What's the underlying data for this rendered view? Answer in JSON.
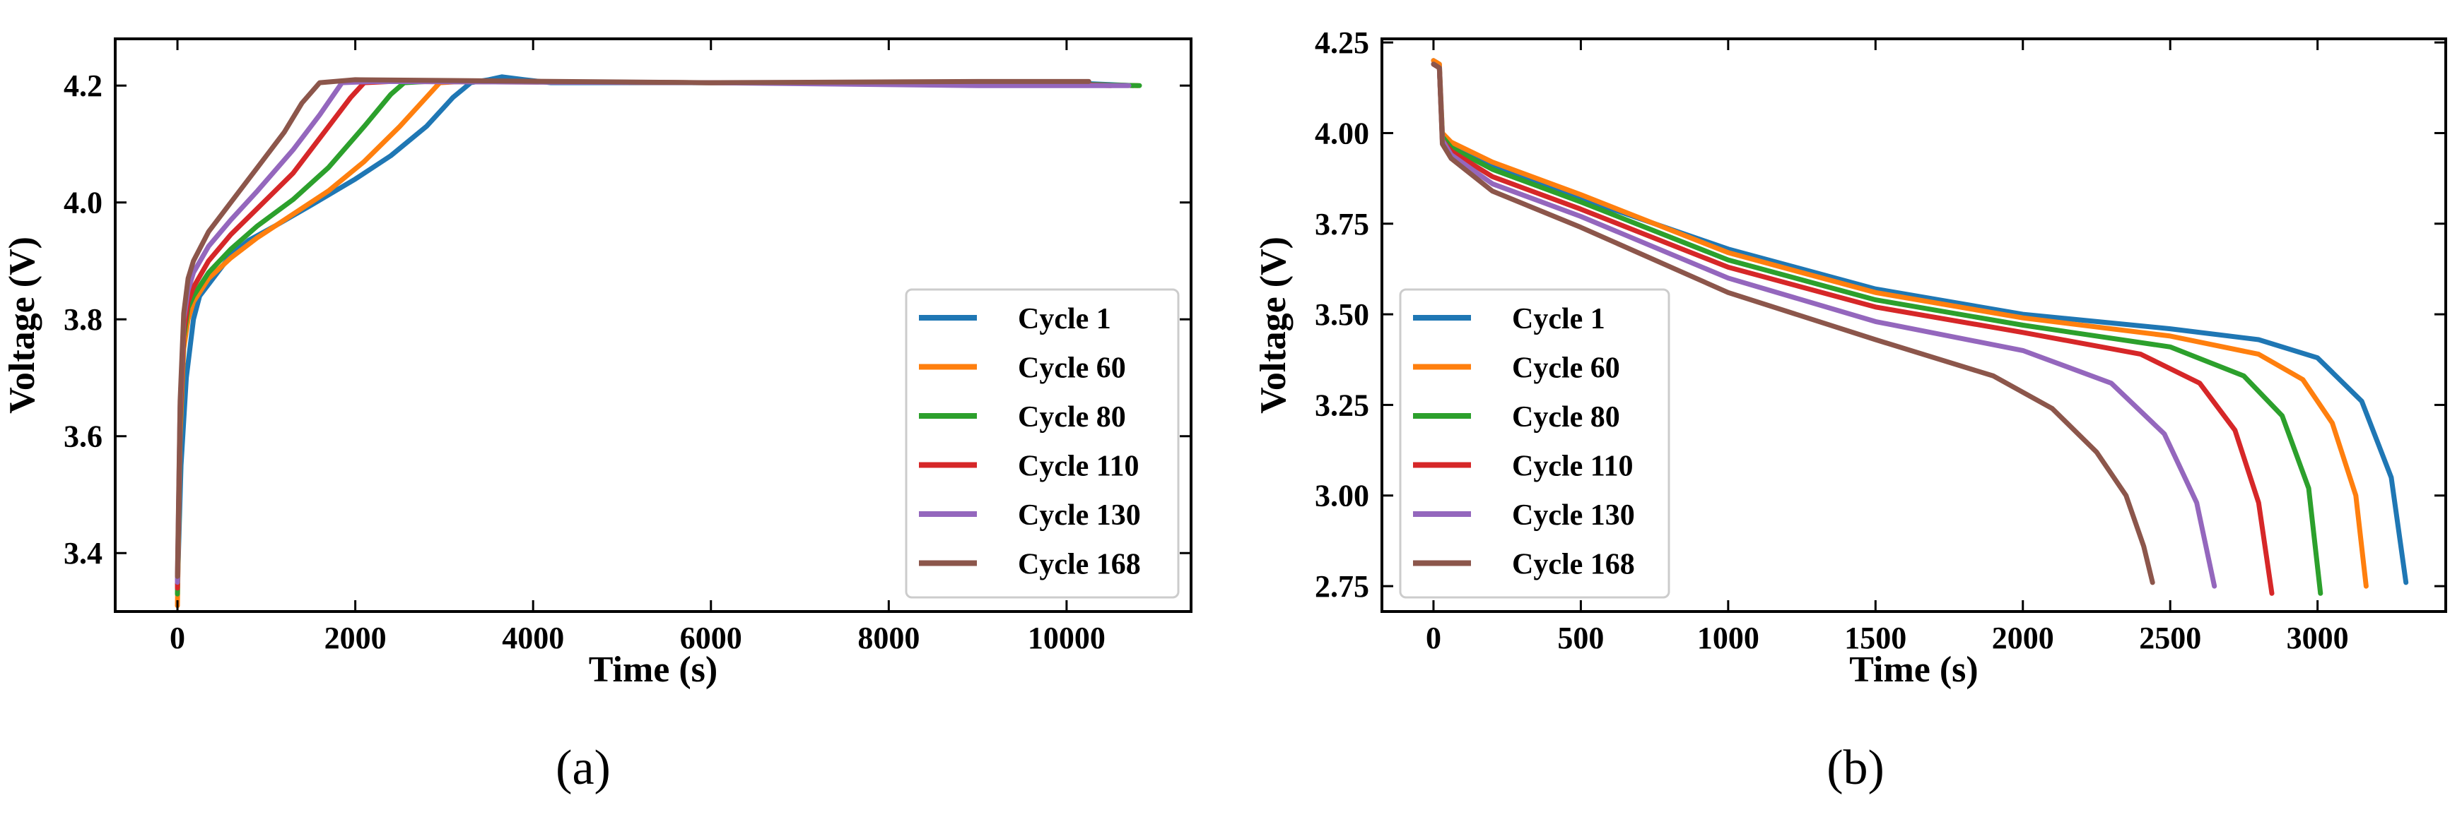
{
  "chart_data": [
    {
      "id": "a",
      "type": "line",
      "caption": "(a)",
      "xlabel": "Time (s)",
      "ylabel": "Voltage (V)",
      "xlim": [
        -700,
        11400
      ],
      "ylim": [
        3.3,
        4.28
      ],
      "xticks": [
        0,
        2000,
        4000,
        6000,
        8000,
        10000
      ],
      "xtick_labels": [
        "0",
        "2000",
        "4000",
        "6000",
        "8000",
        "10000"
      ],
      "yticks": [
        3.4,
        3.6,
        3.8,
        4.0,
        4.2
      ],
      "ytick_labels": [
        "3.4",
        "3.6",
        "3.8",
        "4.0",
        "4.2"
      ],
      "legend_position": "lower-right",
      "series": [
        {
          "name": "Cycle 1",
          "color": "#1f77b4",
          "points": [
            [
              0,
              3.34
            ],
            [
              40,
              3.55
            ],
            [
              100,
              3.7
            ],
            [
              180,
              3.8
            ],
            [
              250,
              3.84
            ],
            [
              400,
              3.87
            ],
            [
              600,
              3.91
            ],
            [
              800,
              3.935
            ],
            [
              1100,
              3.96
            ],
            [
              1500,
              3.995
            ],
            [
              2000,
              4.04
            ],
            [
              2400,
              4.08
            ],
            [
              2800,
              4.13
            ],
            [
              3100,
              4.18
            ],
            [
              3300,
              4.205
            ],
            [
              3500,
              4.21
            ],
            [
              3650,
              4.215
            ],
            [
              3900,
              4.21
            ],
            [
              4200,
              4.205
            ],
            [
              6000,
              4.205
            ],
            [
              8000,
              4.205
            ],
            [
              10000,
              4.205
            ],
            [
              10750,
              4.2
            ]
          ]
        },
        {
          "name": "Cycle 60",
          "color": "#ff7f0e",
          "points": [
            [
              0,
              3.31
            ],
            [
              30,
              3.6
            ],
            [
              70,
              3.75
            ],
            [
              120,
              3.8
            ],
            [
              180,
              3.83
            ],
            [
              350,
              3.87
            ],
            [
              600,
              3.905
            ],
            [
              900,
              3.94
            ],
            [
              1300,
              3.98
            ],
            [
              1700,
              4.02
            ],
            [
              2100,
              4.07
            ],
            [
              2500,
              4.13
            ],
            [
              2800,
              4.18
            ],
            [
              2950,
              4.205
            ],
            [
              3200,
              4.207
            ],
            [
              6000,
              4.205
            ],
            [
              9000,
              4.205
            ],
            [
              10800,
              4.2
            ]
          ]
        },
        {
          "name": "Cycle 80",
          "color": "#2ca02c",
          "points": [
            [
              0,
              3.33
            ],
            [
              30,
              3.62
            ],
            [
              70,
              3.77
            ],
            [
              120,
              3.82
            ],
            [
              180,
              3.84
            ],
            [
              350,
              3.88
            ],
            [
              600,
              3.92
            ],
            [
              900,
              3.96
            ],
            [
              1300,
              4.005
            ],
            [
              1700,
              4.06
            ],
            [
              2100,
              4.13
            ],
            [
              2400,
              4.185
            ],
            [
              2550,
              4.205
            ],
            [
              2800,
              4.207
            ],
            [
              6000,
              4.205
            ],
            [
              9000,
              4.205
            ],
            [
              10820,
              4.2
            ]
          ]
        },
        {
          "name": "Cycle 110",
          "color": "#d62728",
          "points": [
            [
              0,
              3.34
            ],
            [
              30,
              3.63
            ],
            [
              70,
              3.78
            ],
            [
              120,
              3.83
            ],
            [
              180,
              3.855
            ],
            [
              350,
              3.9
            ],
            [
              600,
              3.945
            ],
            [
              900,
              3.99
            ],
            [
              1300,
              4.05
            ],
            [
              1700,
              4.13
            ],
            [
              1950,
              4.18
            ],
            [
              2100,
              4.205
            ],
            [
              2400,
              4.207
            ],
            [
              6000,
              4.205
            ],
            [
              9000,
              4.205
            ],
            [
              10500,
              4.2
            ]
          ]
        },
        {
          "name": "Cycle 130",
          "color": "#9467bd",
          "points": [
            [
              0,
              3.35
            ],
            [
              30,
              3.65
            ],
            [
              70,
              3.8
            ],
            [
              120,
              3.85
            ],
            [
              180,
              3.88
            ],
            [
              350,
              3.925
            ],
            [
              600,
              3.97
            ],
            [
              900,
              4.02
            ],
            [
              1300,
              4.09
            ],
            [
              1600,
              4.15
            ],
            [
              1850,
              4.205
            ],
            [
              2200,
              4.207
            ],
            [
              6000,
              4.205
            ],
            [
              9000,
              4.2
            ],
            [
              10700,
              4.2
            ]
          ]
        },
        {
          "name": "Cycle 168",
          "color": "#8c564b",
          "points": [
            [
              0,
              3.36
            ],
            [
              30,
              3.66
            ],
            [
              70,
              3.81
            ],
            [
              120,
              3.87
            ],
            [
              180,
              3.9
            ],
            [
              350,
              3.95
            ],
            [
              600,
              4.0
            ],
            [
              900,
              4.06
            ],
            [
              1200,
              4.12
            ],
            [
              1400,
              4.17
            ],
            [
              1600,
              4.205
            ],
            [
              2000,
              4.21
            ],
            [
              6000,
              4.205
            ],
            [
              9000,
              4.207
            ],
            [
              10250,
              4.207
            ]
          ]
        }
      ]
    },
    {
      "id": "b",
      "type": "line",
      "caption": "(b)",
      "xlabel": "Time (s)",
      "ylabel": "Voltage (V)",
      "xlim": [
        -175,
        3435
      ],
      "ylim": [
        2.68,
        4.26
      ],
      "xticks": [
        0,
        500,
        1000,
        1500,
        2000,
        2500,
        3000
      ],
      "xtick_labels": [
        "0",
        "500",
        "1000",
        "1500",
        "2000",
        "2500",
        "3000"
      ],
      "yticks": [
        2.75,
        3.0,
        3.25,
        3.5,
        3.75,
        4.0,
        4.25
      ],
      "ytick_labels": [
        "2.75",
        "3.00",
        "3.25",
        "3.50",
        "3.75",
        "4.00",
        "4.25"
      ],
      "legend_position": "lower-left",
      "series": [
        {
          "name": "Cycle 1",
          "color": "#1f77b4",
          "points": [
            [
              0,
              4.2
            ],
            [
              20,
              4.19
            ],
            [
              30,
              4.0
            ],
            [
              60,
              3.97
            ],
            [
              200,
              3.91
            ],
            [
              500,
              3.82
            ],
            [
              1000,
              3.68
            ],
            [
              1500,
              3.57
            ],
            [
              2000,
              3.5
            ],
            [
              2500,
              3.46
            ],
            [
              2800,
              3.43
            ],
            [
              3000,
              3.38
            ],
            [
              3150,
              3.26
            ],
            [
              3250,
              3.05
            ],
            [
              3300,
              2.76
            ]
          ]
        },
        {
          "name": "Cycle 60",
          "color": "#ff7f0e",
          "points": [
            [
              0,
              4.2
            ],
            [
              20,
              4.19
            ],
            [
              30,
              4.0
            ],
            [
              60,
              3.975
            ],
            [
              200,
              3.92
            ],
            [
              500,
              3.83
            ],
            [
              1000,
              3.67
            ],
            [
              1500,
              3.56
            ],
            [
              2000,
              3.49
            ],
            [
              2500,
              3.44
            ],
            [
              2800,
              3.39
            ],
            [
              2950,
              3.32
            ],
            [
              3050,
              3.2
            ],
            [
              3130,
              3.0
            ],
            [
              3165,
              2.75
            ]
          ]
        },
        {
          "name": "Cycle 80",
          "color": "#2ca02c",
          "points": [
            [
              0,
              4.19
            ],
            [
              20,
              4.18
            ],
            [
              30,
              3.99
            ],
            [
              60,
              3.96
            ],
            [
              200,
              3.9
            ],
            [
              500,
              3.81
            ],
            [
              1000,
              3.65
            ],
            [
              1500,
              3.54
            ],
            [
              2000,
              3.47
            ],
            [
              2500,
              3.41
            ],
            [
              2750,
              3.33
            ],
            [
              2880,
              3.22
            ],
            [
              2970,
              3.02
            ],
            [
              3010,
              2.73
            ]
          ]
        },
        {
          "name": "Cycle 110",
          "color": "#d62728",
          "points": [
            [
              0,
              4.19
            ],
            [
              20,
              4.18
            ],
            [
              30,
              3.98
            ],
            [
              60,
              3.95
            ],
            [
              200,
              3.88
            ],
            [
              500,
              3.79
            ],
            [
              1000,
              3.63
            ],
            [
              1500,
              3.52
            ],
            [
              2000,
              3.45
            ],
            [
              2400,
              3.39
            ],
            [
              2600,
              3.31
            ],
            [
              2720,
              3.18
            ],
            [
              2800,
              2.98
            ],
            [
              2845,
              2.73
            ]
          ]
        },
        {
          "name": "Cycle 130",
          "color": "#9467bd",
          "points": [
            [
              0,
              4.19
            ],
            [
              20,
              4.18
            ],
            [
              30,
              3.98
            ],
            [
              60,
              3.94
            ],
            [
              200,
              3.86
            ],
            [
              500,
              3.77
            ],
            [
              1000,
              3.6
            ],
            [
              1500,
              3.48
            ],
            [
              2000,
              3.4
            ],
            [
              2300,
              3.31
            ],
            [
              2480,
              3.17
            ],
            [
              2590,
              2.98
            ],
            [
              2650,
              2.75
            ]
          ]
        },
        {
          "name": "Cycle 168",
          "color": "#8c564b",
          "points": [
            [
              0,
              4.19
            ],
            [
              20,
              4.18
            ],
            [
              30,
              3.97
            ],
            [
              60,
              3.93
            ],
            [
              200,
              3.84
            ],
            [
              500,
              3.74
            ],
            [
              1000,
              3.56
            ],
            [
              1500,
              3.43
            ],
            [
              1900,
              3.33
            ],
            [
              2100,
              3.24
            ],
            [
              2250,
              3.12
            ],
            [
              2350,
              3.0
            ],
            [
              2410,
              2.86
            ],
            [
              2440,
              2.76
            ]
          ]
        }
      ]
    }
  ]
}
